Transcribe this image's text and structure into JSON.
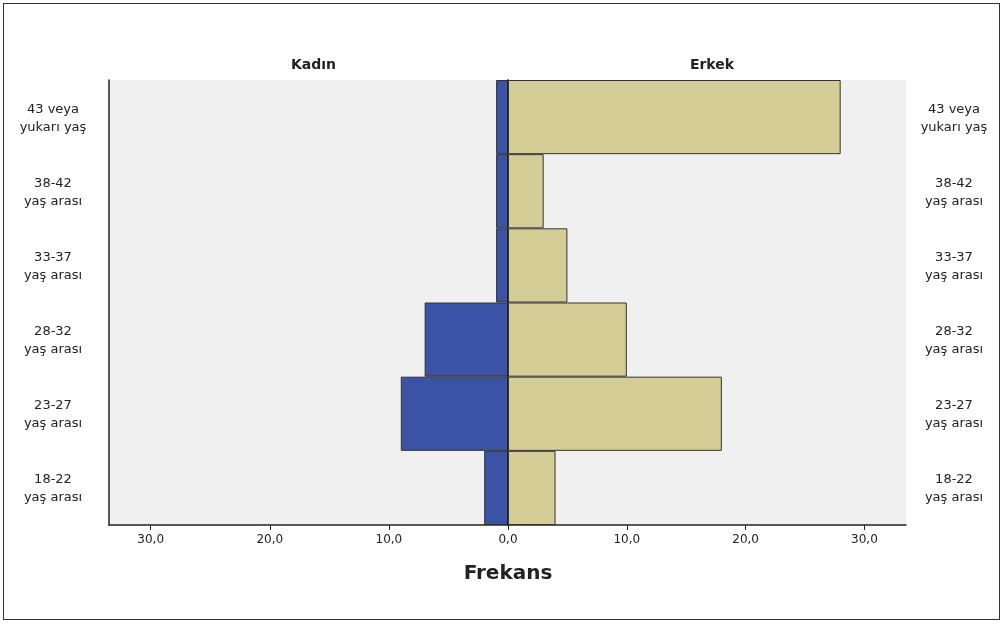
{
  "chart_data": [
    {
      "type": "bar",
      "orientation": "horizontal",
      "title": "Kadın",
      "xlabel": "Frekans",
      "categories": [
        "43 veya\nyukarı yaş",
        "38-42\nyaş arası",
        "33-37\nyaş arası",
        "28-32\nyaş arası",
        "23-27\nyaş arası",
        "18-22\nyaş arası"
      ],
      "series": [
        {
          "color": "#3b53a6",
          "values": [
            1,
            1,
            1,
            7,
            9,
            2
          ]
        }
      ],
      "xlim": [
        33.5,
        0
      ],
      "xticks": [
        {
          "value": 30,
          "label": "30,0"
        },
        {
          "value": 20,
          "label": "20,0"
        },
        {
          "value": 10,
          "label": "10,0"
        },
        {
          "value": 0,
          "label": null
        }
      ],
      "grid": false
    },
    {
      "type": "bar",
      "orientation": "horizontal",
      "title": "Erkek",
      "categories": [
        "43 veya\nyukarı yaş",
        "38-42\nyaş arası",
        "33-37\nyaş arası",
        "28-32\nyaş arası",
        "23-27\nyaş arası",
        "18-22\nyaş arası"
      ],
      "series": [
        {
          "color": "#d4ce96",
          "values": [
            28,
            3,
            5,
            10,
            18,
            4
          ]
        }
      ],
      "xlim": [
        0,
        33.5
      ],
      "xticks": [
        {
          "value": 0,
          "label": "0,0"
        },
        {
          "value": 10,
          "label": "10,0"
        },
        {
          "value": 20,
          "label": "20,0"
        },
        {
          "value": 30,
          "label": "30,0"
        }
      ],
      "grid": false
    }
  ]
}
